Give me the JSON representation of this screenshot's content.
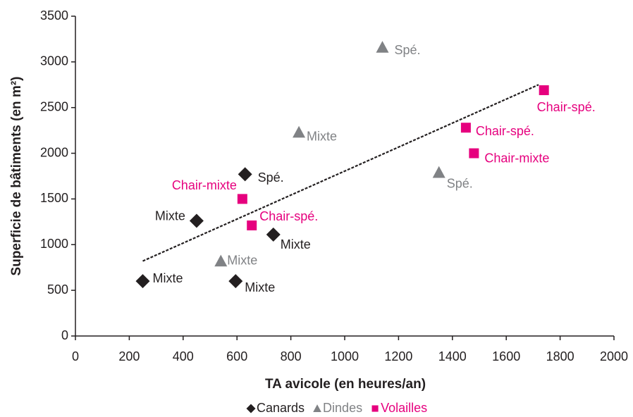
{
  "chart_data": {
    "type": "scatter",
    "x_label": "TA avicole (en heures/an)",
    "y_label": "Superficie de bâtiments (en m²)",
    "xlim": [
      0,
      2000
    ],
    "xticks": [
      0,
      200,
      400,
      600,
      800,
      1000,
      1200,
      1400,
      1600,
      1800,
      2000
    ],
    "ylim": [
      0,
      3500
    ],
    "yticks": [
      0,
      500,
      1000,
      1500,
      2000,
      2500,
      3000,
      3500
    ],
    "series": [
      {
        "name": "Canards",
        "color": "#231f20",
        "marker": "diamond",
        "x": [
          250,
          450,
          630,
          735,
          595
        ],
        "values": [
          600,
          1260,
          1770,
          1110,
          600
        ],
        "labels": [
          "Mixte",
          "Mixte",
          "Spé.",
          "Mixte",
          "Mixte"
        ]
      },
      {
        "name": "Dindes",
        "color": "#808285",
        "marker": "triangle",
        "x": [
          1140,
          830,
          1350,
          540
        ],
        "values": [
          3160,
          2230,
          1790,
          820
        ],
        "labels": [
          "Spé.",
          "Mixte",
          "Spé.",
          "Mixte"
        ]
      },
      {
        "name": "Volailles",
        "color": "#e6007e",
        "marker": "square",
        "x": [
          1740,
          1450,
          1480,
          620,
          655
        ],
        "values": [
          2690,
          2280,
          2000,
          1500,
          1210
        ],
        "labels": [
          "Chair-spé.",
          "Chair-spé.",
          "Chair-mixte",
          "Chair-mixte",
          "Chair-spé."
        ]
      }
    ],
    "trendline": {
      "x": [
        250,
        1720
      ],
      "values": [
        820,
        2750
      ],
      "color": "#231f20"
    }
  }
}
